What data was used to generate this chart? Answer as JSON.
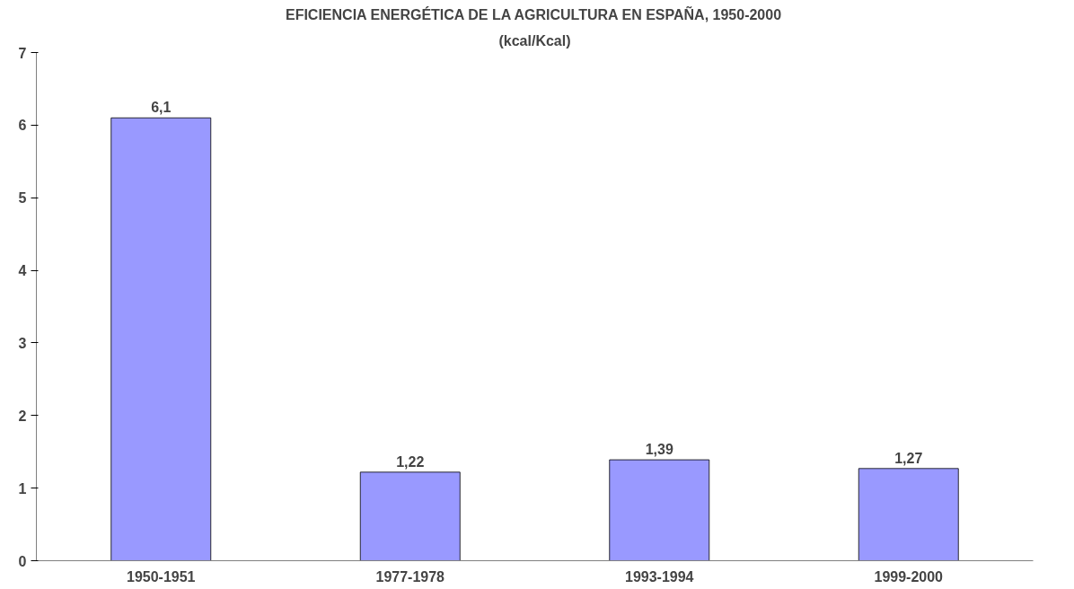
{
  "chart_data": {
    "type": "bar",
    "title": "EFICIENCIA ENERGÉTICA DE LA AGRICULTURA EN ESPAÑA, 1950-2000",
    "subtitle": "(kcal/Kcal)",
    "categories": [
      "1950-1951",
      "1977-1978",
      "1993-1994",
      "1999-2000"
    ],
    "values": [
      6.1,
      1.22,
      1.39,
      1.27
    ],
    "value_labels": [
      "6,1",
      "1,22",
      "1,39",
      "1,27"
    ],
    "color": "#9999ff",
    "ylim": [
      0,
      7
    ],
    "yticks": [
      0,
      1,
      2,
      3,
      4,
      5,
      6,
      7
    ],
    "grid": false
  }
}
